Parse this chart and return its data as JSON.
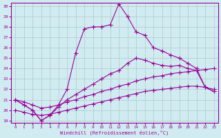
{
  "xlabel": "Windchill (Refroidissement éolien,°C)",
  "x": [
    0,
    1,
    2,
    3,
    4,
    5,
    6,
    7,
    8,
    9,
    10,
    11,
    12,
    13,
    14,
    15,
    16,
    17,
    18,
    19,
    20,
    21,
    22,
    23
  ],
  "line1": [
    21.0,
    20.5,
    20.0,
    19.0,
    19.5,
    20.5,
    22.0,
    25.5,
    27.8,
    28.0,
    28.0,
    28.2,
    30.2,
    29.0,
    27.5,
    27.2,
    26.0,
    25.7,
    25.3,
    25.0,
    24.5,
    24.0,
    22.2,
    21.8
  ],
  "line2": [
    21.0,
    20.5,
    20.0,
    19.0,
    19.5,
    20.3,
    21.0,
    21.5,
    22.0,
    22.5,
    23.0,
    23.5,
    23.8,
    24.5,
    25.0,
    24.8,
    24.5,
    24.3,
    24.2,
    24.3,
    24.0,
    23.8,
    22.2,
    21.8
  ],
  "line3": [
    21.0,
    20.8,
    20.5,
    20.2,
    20.3,
    20.5,
    20.8,
    21.0,
    21.3,
    21.5,
    21.8,
    22.0,
    22.3,
    22.5,
    22.8,
    23.0,
    23.2,
    23.3,
    23.5,
    23.6,
    23.7,
    23.8,
    23.9,
    24.0
  ],
  "line4": [
    20.0,
    19.8,
    19.6,
    19.5,
    19.6,
    19.8,
    20.0,
    20.2,
    20.4,
    20.6,
    20.8,
    21.0,
    21.2,
    21.4,
    21.6,
    21.8,
    21.9,
    22.0,
    22.1,
    22.2,
    22.3,
    22.3,
    22.2,
    22.0
  ],
  "line_color": "#990099",
  "bg_color": "#d0ecf0",
  "grid_color": "#b0c8cc",
  "ylim": [
    19,
    30
  ],
  "xlim": [
    0,
    23
  ],
  "yticks": [
    19,
    20,
    21,
    22,
    23,
    24,
    25,
    26,
    27,
    28,
    29,
    30
  ],
  "xticks": [
    0,
    1,
    2,
    3,
    4,
    5,
    6,
    7,
    8,
    9,
    10,
    11,
    12,
    13,
    14,
    15,
    16,
    17,
    18,
    19,
    20,
    21,
    22,
    23
  ]
}
